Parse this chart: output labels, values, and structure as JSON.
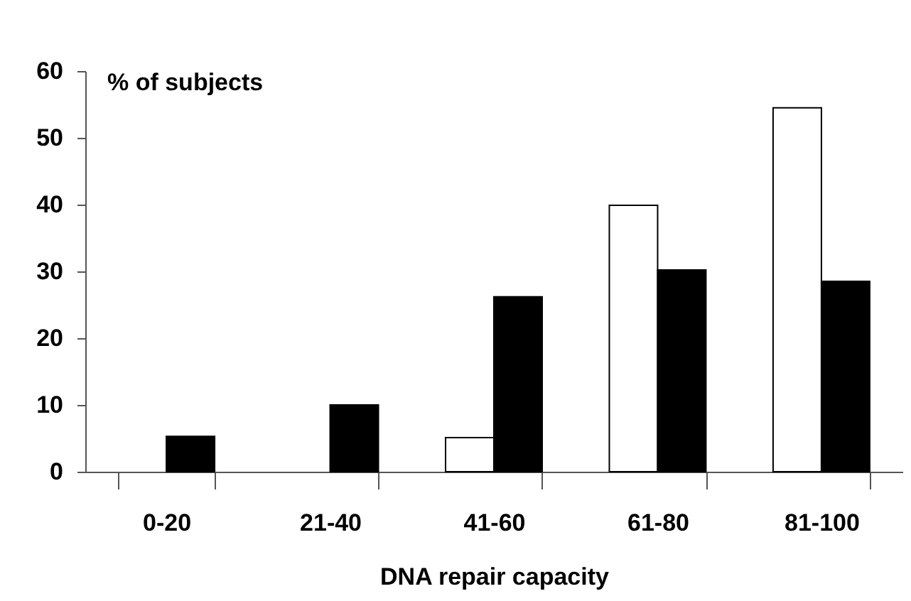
{
  "chart_data": {
    "type": "bar",
    "ylabel": "% of subjects",
    "xlabel": "DNA repair capacity",
    "categories": [
      "0-20",
      "21-40",
      "41-60",
      "61-80",
      "81-100"
    ],
    "series": [
      {
        "color": "#ffffff",
        "values": [
          null,
          null,
          5.1,
          39.9,
          54.5
        ]
      },
      {
        "color": "#000000",
        "values": [
          5.3,
          10,
          26.2,
          30.2,
          28.5
        ]
      }
    ],
    "ylim": [
      0,
      60
    ],
    "yticks": [
      0,
      10,
      20,
      30,
      40,
      50,
      60
    ],
    "grid": false
  }
}
